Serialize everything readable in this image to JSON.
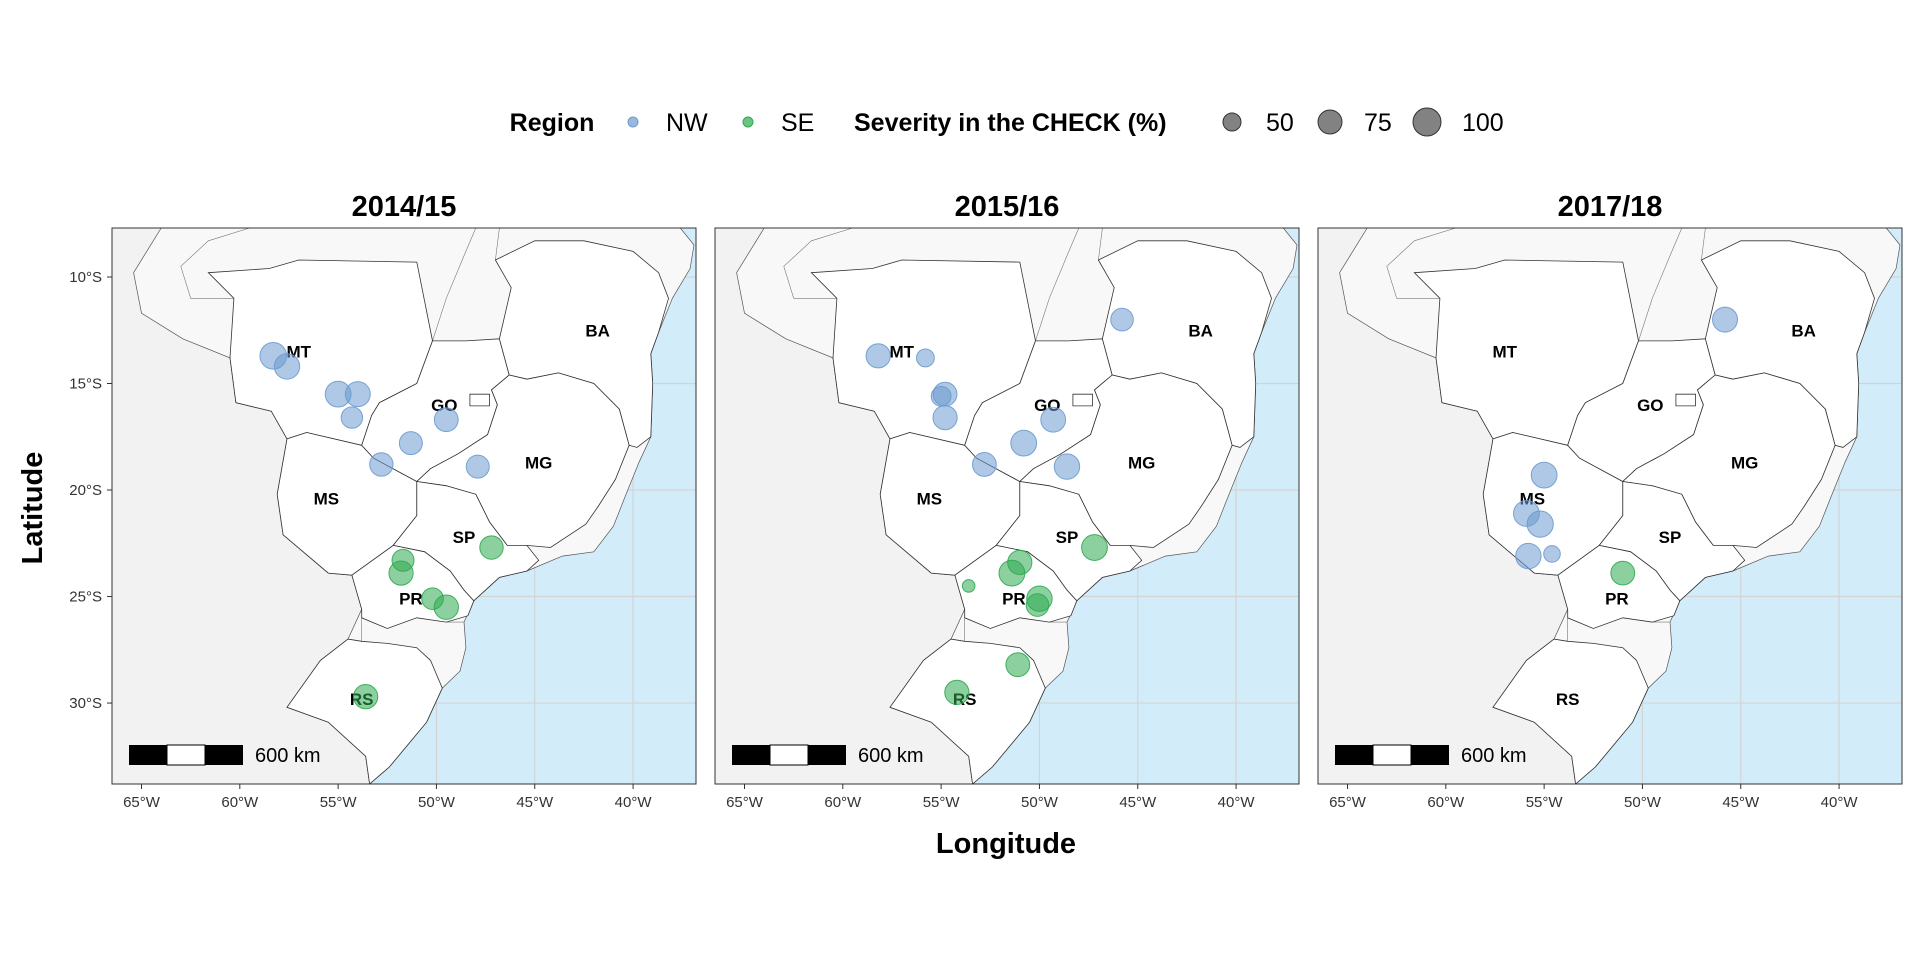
{
  "legend": {
    "region_title": "Region",
    "region_items": [
      {
        "label": "NW",
        "color": "#6b9bcf"
      },
      {
        "label": "SE",
        "color": "#2eaa50"
      }
    ],
    "size_title": "Severity in the CHECK (%)",
    "size_items": [
      {
        "label": "50",
        "value": 50
      },
      {
        "label": "75",
        "value": 75
      },
      {
        "label": "100",
        "value": 100
      }
    ]
  },
  "axes": {
    "xlabel": "Longitude",
    "ylabel": "Latitude",
    "x_ticks": [
      {
        "value": -65,
        "label": "65°W"
      },
      {
        "value": -60,
        "label": "60°W"
      },
      {
        "value": -55,
        "label": "55°W"
      },
      {
        "value": -50,
        "label": "50°W"
      },
      {
        "value": -45,
        "label": "45°W"
      },
      {
        "value": -40,
        "label": "40°W"
      }
    ],
    "y_ticks": [
      {
        "value": -10,
        "label": "10°S"
      },
      {
        "value": -15,
        "label": "15°S"
      },
      {
        "value": -20,
        "label": "20°S"
      },
      {
        "value": -25,
        "label": "25°S"
      },
      {
        "value": -30,
        "label": "30°S"
      }
    ],
    "xlim": [
      -66.5,
      -36.8
    ],
    "ylim": [
      -33.8,
      -7.7
    ]
  },
  "scale_bar": {
    "label": "600 km"
  },
  "colors": {
    "ocean": "#d2ecfa",
    "land": "#f2f2f2",
    "region": "#ffffff",
    "grid": "#d4d4d4",
    "border": "#333333"
  },
  "state_labels": [
    {
      "name": "MT",
      "lon": -57.0,
      "lat": -13.5
    },
    {
      "name": "BA",
      "lon": -41.8,
      "lat": -12.5
    },
    {
      "name": "GO",
      "lon": -49.6,
      "lat": -16.0
    },
    {
      "name": "MG",
      "lon": -44.8,
      "lat": -18.7
    },
    {
      "name": "MS",
      "lon": -55.6,
      "lat": -20.4
    },
    {
      "name": "SP",
      "lon": -48.6,
      "lat": -22.2
    },
    {
      "name": "PR",
      "lon": -51.3,
      "lat": -25.1
    },
    {
      "name": "RS",
      "lon": -53.8,
      "lat": -29.8
    }
  ],
  "chart_data": [
    {
      "type": "scatter",
      "title": "2014/15",
      "state_labels": [
        "MT",
        "BA",
        "GO",
        "MG",
        "MS",
        "SP",
        "PR",
        "RS"
      ],
      "points": [
        {
          "lon": -58.3,
          "lat": -13.7,
          "severity": 90,
          "region": "NW"
        },
        {
          "lon": -57.6,
          "lat": -14.2,
          "severity": 82,
          "region": "NW"
        },
        {
          "lon": -55.0,
          "lat": -15.5,
          "severity": 85,
          "region": "NW"
        },
        {
          "lon": -54.0,
          "lat": -15.5,
          "severity": 80,
          "region": "NW"
        },
        {
          "lon": -54.3,
          "lat": -16.6,
          "severity": 58,
          "region": "NW"
        },
        {
          "lon": -51.3,
          "lat": -17.8,
          "severity": 68,
          "region": "NW"
        },
        {
          "lon": -49.5,
          "lat": -16.7,
          "severity": 72,
          "region": "NW"
        },
        {
          "lon": -52.8,
          "lat": -18.8,
          "severity": 70,
          "region": "NW"
        },
        {
          "lon": -47.9,
          "lat": -18.9,
          "severity": 68,
          "region": "NW"
        },
        {
          "lon": -51.7,
          "lat": -23.3,
          "severity": 62,
          "region": "SE"
        },
        {
          "lon": -51.8,
          "lat": -23.9,
          "severity": 75,
          "region": "SE"
        },
        {
          "lon": -47.2,
          "lat": -22.7,
          "severity": 70,
          "region": "SE"
        },
        {
          "lon": -50.2,
          "lat": -25.1,
          "severity": 60,
          "region": "SE"
        },
        {
          "lon": -49.5,
          "lat": -25.5,
          "severity": 76,
          "region": "SE"
        },
        {
          "lon": -53.6,
          "lat": -29.7,
          "severity": 75,
          "region": "SE"
        }
      ]
    },
    {
      "type": "scatter",
      "title": "2015/16",
      "state_labels": [
        "MT",
        "BA",
        "GO",
        "MG",
        "MS",
        "SP",
        "PR",
        "RS"
      ],
      "points": [
        {
          "lon": -58.2,
          "lat": -13.7,
          "severity": 75,
          "region": "NW"
        },
        {
          "lon": -55.8,
          "lat": -13.8,
          "severity": 40,
          "region": "NW"
        },
        {
          "lon": -45.8,
          "lat": -12.0,
          "severity": 65,
          "region": "NW"
        },
        {
          "lon": -54.8,
          "lat": -15.5,
          "severity": 72,
          "region": "NW"
        },
        {
          "lon": -55.0,
          "lat": -15.6,
          "severity": 50,
          "region": "NW"
        },
        {
          "lon": -54.8,
          "lat": -16.6,
          "severity": 75,
          "region": "NW"
        },
        {
          "lon": -50.8,
          "lat": -17.8,
          "severity": 85,
          "region": "NW"
        },
        {
          "lon": -49.3,
          "lat": -16.7,
          "severity": 78,
          "region": "NW"
        },
        {
          "lon": -52.8,
          "lat": -18.8,
          "severity": 72,
          "region": "NW"
        },
        {
          "lon": -48.6,
          "lat": -18.9,
          "severity": 82,
          "region": "NW"
        },
        {
          "lon": -53.6,
          "lat": -24.5,
          "severity": 20,
          "region": "SE"
        },
        {
          "lon": -51.0,
          "lat": -23.4,
          "severity": 75,
          "region": "SE"
        },
        {
          "lon": -51.4,
          "lat": -23.9,
          "severity": 85,
          "region": "SE"
        },
        {
          "lon": -47.2,
          "lat": -22.7,
          "severity": 85,
          "region": "SE"
        },
        {
          "lon": -50.0,
          "lat": -25.1,
          "severity": 82,
          "region": "SE"
        },
        {
          "lon": -50.1,
          "lat": -25.4,
          "severity": 65,
          "region": "SE"
        },
        {
          "lon": -51.1,
          "lat": -28.2,
          "severity": 72,
          "region": "SE"
        },
        {
          "lon": -54.2,
          "lat": -29.5,
          "severity": 75,
          "region": "SE"
        }
      ]
    },
    {
      "type": "scatter",
      "title": "2017/18",
      "state_labels": [
        "MT",
        "BA",
        "GO",
        "MG",
        "MS",
        "SP",
        "PR",
        "RS"
      ],
      "points": [
        {
          "lon": -45.8,
          "lat": -12.0,
          "severity": 80,
          "region": "NW"
        },
        {
          "lon": -55.0,
          "lat": -19.3,
          "severity": 85,
          "region": "NW"
        },
        {
          "lon": -55.9,
          "lat": -21.1,
          "severity": 85,
          "region": "NW"
        },
        {
          "lon": -55.2,
          "lat": -21.6,
          "severity": 88,
          "region": "NW"
        },
        {
          "lon": -55.8,
          "lat": -23.1,
          "severity": 82,
          "region": "NW"
        },
        {
          "lon": -54.6,
          "lat": -23.0,
          "severity": 35,
          "region": "NW"
        },
        {
          "lon": -51.0,
          "lat": -23.9,
          "severity": 72,
          "region": "SE"
        }
      ]
    }
  ]
}
